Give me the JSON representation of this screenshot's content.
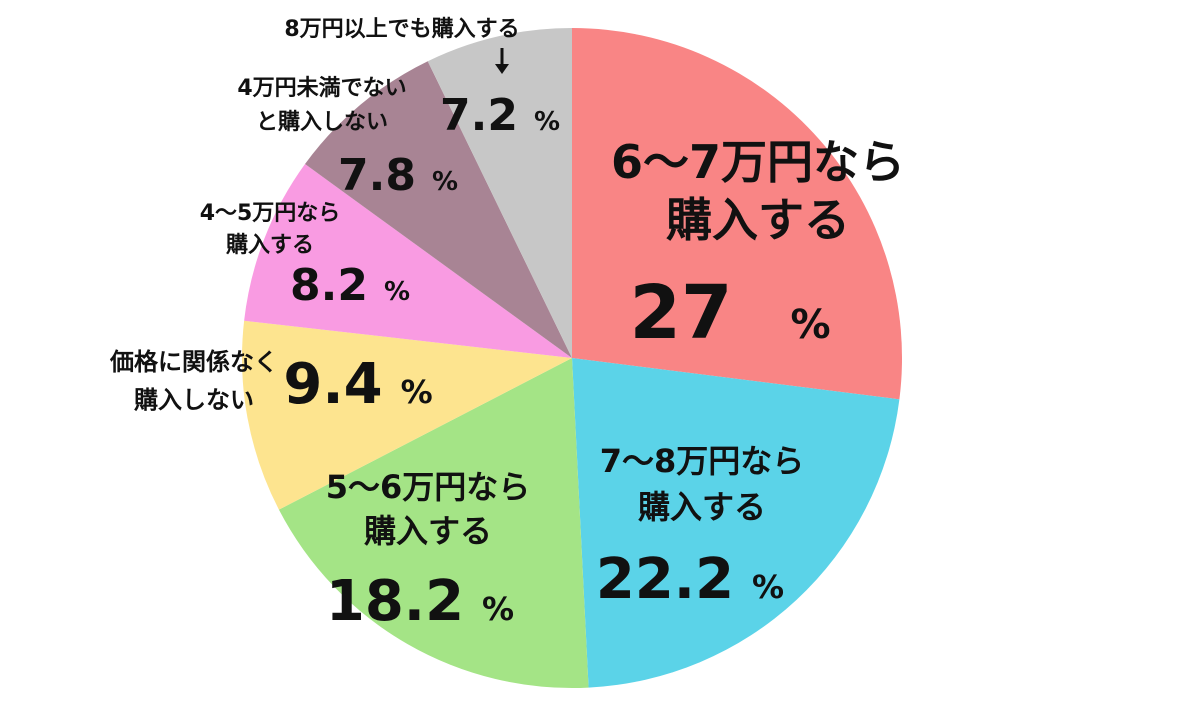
{
  "chart_data": {
    "type": "pie",
    "slices": [
      {
        "label_lines": [
          "6〜7万円なら",
          "購入する"
        ],
        "value": 27,
        "value_text": "27",
        "color": "#f98585"
      },
      {
        "label_lines": [
          "7〜8万円なら",
          "購入する"
        ],
        "value": 22.2,
        "value_text": "22.2",
        "color": "#5bd3e8"
      },
      {
        "label_lines": [
          "5〜6万円なら",
          "購入する"
        ],
        "value": 18.2,
        "value_text": "18.2",
        "color": "#a4e486"
      },
      {
        "label_lines": [
          "価格に関係なく",
          "購入しない"
        ],
        "value": 9.4,
        "value_text": "9.4",
        "color": "#fde48f"
      },
      {
        "label_lines": [
          "4〜5万円なら",
          "購入する"
        ],
        "value": 8.2,
        "value_text": "8.2",
        "color": "#f99be2"
      },
      {
        "label_lines": [
          "4万円未満でない",
          "と購入しない"
        ],
        "value": 7.8,
        "value_text": "7.8",
        "color": "#a88494"
      },
      {
        "label_lines": [
          "8万円以上でも購入する"
        ],
        "value": 7.2,
        "value_text": "7.2",
        "color": "#c7c7c7"
      }
    ],
    "unit": "%",
    "start_angle_deg": 0,
    "direction": "clockwise"
  }
}
